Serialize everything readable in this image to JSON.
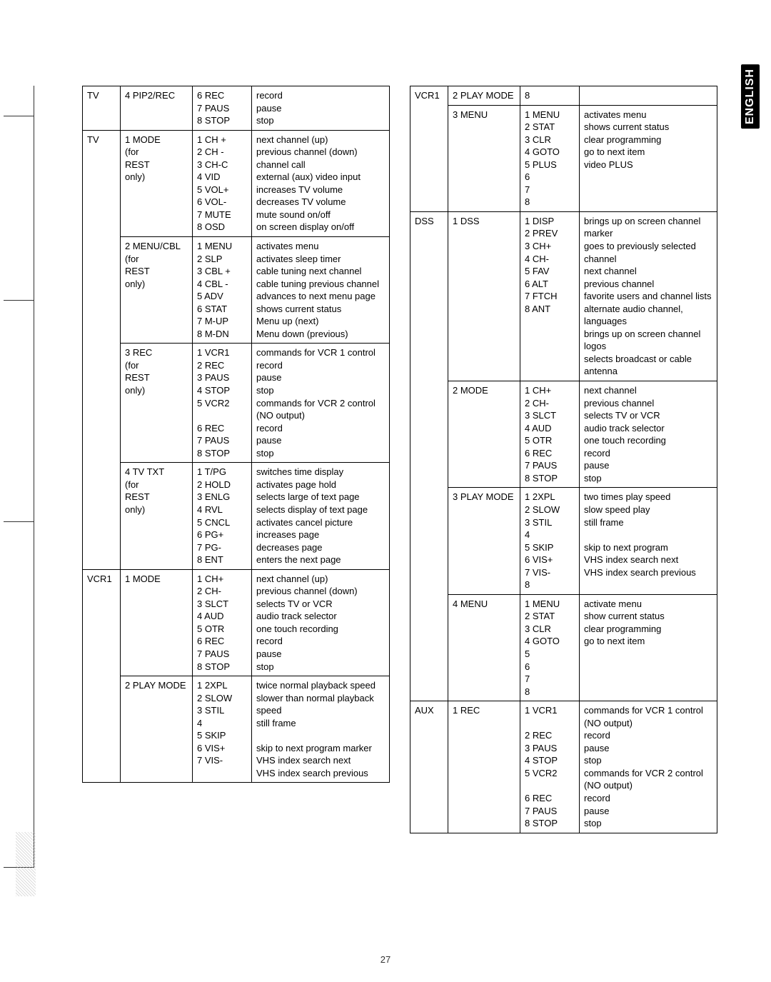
{
  "language_tab": "ENGLISH",
  "page_number": "27",
  "left": [
    {
      "device": "TV",
      "group": "4 PIP2/REC",
      "items": [
        [
          "6 REC",
          "record"
        ],
        [
          "7 PAUS",
          "pause"
        ],
        [
          "8 STOP",
          "stop"
        ]
      ]
    },
    {
      "device": "TV",
      "group": "1 MODE\n(for\nREST\nonly)",
      "items": [
        [
          "1 CH +",
          "next channel (up)"
        ],
        [
          "2 CH -",
          "previous channel (down)"
        ],
        [
          "3 CH-C",
          "channel call"
        ],
        [
          "4 VID",
          "external (aux) video input"
        ],
        [
          "5 VOL+",
          "increases TV volume"
        ],
        [
          "6 VOL-",
          "decreases TV volume"
        ],
        [
          "7 MUTE",
          "mute sound on/off"
        ],
        [
          "8 OSD",
          "on screen display on/off"
        ]
      ]
    },
    {
      "device": "",
      "group": "2 MENU/CBL\n(for\nREST\nonly)",
      "items": [
        [
          "1 MENU",
          "activates menu"
        ],
        [
          "2 SLP",
          "activates sleep timer"
        ],
        [
          "3 CBL +",
          "cable tuning next channel"
        ],
        [
          "4 CBL -",
          "cable tuning previous channel"
        ],
        [
          "5 ADV",
          "advances to next menu page"
        ],
        [
          "6 STAT",
          "shows current status"
        ],
        [
          "7 M-UP",
          "Menu up (next)"
        ],
        [
          "8 M-DN",
          "Menu down (previous)"
        ]
      ]
    },
    {
      "device": "",
      "group": "3 REC\n(for\nREST\nonly)",
      "items": [
        [
          "1 VCR1",
          "commands for VCR 1 control"
        ],
        [
          "2 REC",
          "record"
        ],
        [
          "3 PAUS",
          "pause"
        ],
        [
          "4 STOP",
          "stop"
        ],
        [
          "5 VCR2",
          "commands for VCR 2 control"
        ],
        [
          "",
          "(NO output)"
        ],
        [
          "6 REC",
          "record"
        ],
        [
          "7 PAUS",
          "pause"
        ],
        [
          "8 STOP",
          "stop"
        ]
      ]
    },
    {
      "device": "",
      "group": "4 TV TXT\n(for\nREST\nonly)",
      "items": [
        [
          "1 T/PG",
          "switches time display"
        ],
        [
          "2 HOLD",
          "activates page hold"
        ],
        [
          "3 ENLG",
          "selects large of text page"
        ],
        [
          "4 RVL",
          "selects display of text page"
        ],
        [
          "5 CNCL",
          "activates cancel picture"
        ],
        [
          "6 PG+",
          "increases page"
        ],
        [
          "7 PG-",
          "decreases page"
        ],
        [
          "8 ENT",
          "enters the next page"
        ]
      ]
    },
    {
      "device": "VCR1",
      "group": "1 MODE",
      "items": [
        [
          "1 CH+",
          "next channel (up)"
        ],
        [
          "2 CH-",
          "previous channel (down)"
        ],
        [
          "3 SLCT",
          "selects TV or VCR"
        ],
        [
          "4 AUD",
          "audio track selector"
        ],
        [
          "5 OTR",
          "one touch recording"
        ],
        [
          "6 REC",
          "record"
        ],
        [
          "7 PAUS",
          "pause"
        ],
        [
          "8 STOP",
          "stop"
        ]
      ]
    },
    {
      "device": "",
      "group": "2 PLAY MODE",
      "items": [
        [
          "1 2XPL",
          "twice normal playback speed"
        ],
        [
          "2 SLOW",
          "slower than normal playback speed"
        ],
        [
          "3 STIL",
          "still frame"
        ],
        [
          "4",
          ""
        ],
        [
          "5 SKIP",
          "skip to next program marker"
        ],
        [
          "6 VIS+",
          "VHS index search next"
        ],
        [
          "7 VIS-",
          "VHS index search previous"
        ]
      ]
    }
  ],
  "right": [
    {
      "device": "VCR1",
      "group": "2 PLAY MODE",
      "items": [
        [
          "8",
          ""
        ]
      ]
    },
    {
      "device": "",
      "group": "3 MENU",
      "items": [
        [
          "1 MENU",
          "activates menu"
        ],
        [
          "2 STAT",
          "shows current status"
        ],
        [
          "3 CLR",
          "clear programming"
        ],
        [
          "4 GOTO",
          "go to next item"
        ],
        [
          "5 PLUS",
          "video PLUS"
        ],
        [
          "6",
          ""
        ],
        [
          "7",
          ""
        ],
        [
          "8",
          ""
        ]
      ]
    },
    {
      "device": "DSS",
      "group": "1 DSS",
      "items": [
        [
          "1 DISP",
          "brings up on screen channel marker"
        ],
        [
          "2 PREV",
          "goes to previously selected channel"
        ],
        [
          "3 CH+",
          "next channel"
        ],
        [
          "4 CH-",
          "previous channel"
        ],
        [
          "5 FAV",
          "favorite users and channel lists"
        ],
        [
          "6 ALT",
          "alternate audio channel, languages"
        ],
        [
          "7 FTCH",
          "brings up on screen channel logos"
        ],
        [
          "8 ANT",
          "selects broadcast or cable antenna"
        ]
      ]
    },
    {
      "device": "",
      "group": "2 MODE",
      "items": [
        [
          "1 CH+",
          "next channel"
        ],
        [
          "2 CH-",
          "previous channel"
        ],
        [
          "3 SLCT",
          "selects TV or VCR"
        ],
        [
          "4 AUD",
          "audio track selector"
        ],
        [
          "5 OTR",
          "one touch recording"
        ],
        [
          "6 REC",
          "record"
        ],
        [
          "7 PAUS",
          "pause"
        ],
        [
          "8 STOP",
          "stop"
        ]
      ]
    },
    {
      "device": "",
      "group": "3 PLAY MODE",
      "items": [
        [
          "1 2XPL",
          "two times play speed"
        ],
        [
          "2 SLOW",
          "slow speed play"
        ],
        [
          "3 STIL",
          "still frame"
        ],
        [
          "4",
          ""
        ],
        [
          "5 SKIP",
          "skip to next program"
        ],
        [
          "6 VIS+",
          "VHS index search next"
        ],
        [
          "7 VIS-",
          "VHS index search previous"
        ],
        [
          "8",
          ""
        ]
      ]
    },
    {
      "device": "",
      "group": "4 MENU",
      "items": [
        [
          "1 MENU",
          "activate menu"
        ],
        [
          "2 STAT",
          "show current status"
        ],
        [
          "3 CLR",
          "clear programming"
        ],
        [
          "4 GOTO",
          "go to next item"
        ],
        [
          "5",
          ""
        ],
        [
          "6",
          ""
        ],
        [
          "7",
          ""
        ],
        [
          "8",
          ""
        ]
      ]
    },
    {
      "device": "AUX",
      "group": "1 REC",
      "items": [
        [
          "1 VCR1",
          "commands for VCR 1 control"
        ],
        [
          "",
          "(NO output)"
        ],
        [
          "2 REC",
          "record"
        ],
        [
          "3 PAUS",
          "pause"
        ],
        [
          "4 STOP",
          "stop"
        ],
        [
          "5 VCR2",
          "commands for VCR 2 control"
        ],
        [
          "",
          "(NO output)"
        ],
        [
          "6 REC",
          "record"
        ],
        [
          "7 PAUS",
          "pause"
        ],
        [
          "8 STOP",
          "stop"
        ]
      ]
    }
  ]
}
